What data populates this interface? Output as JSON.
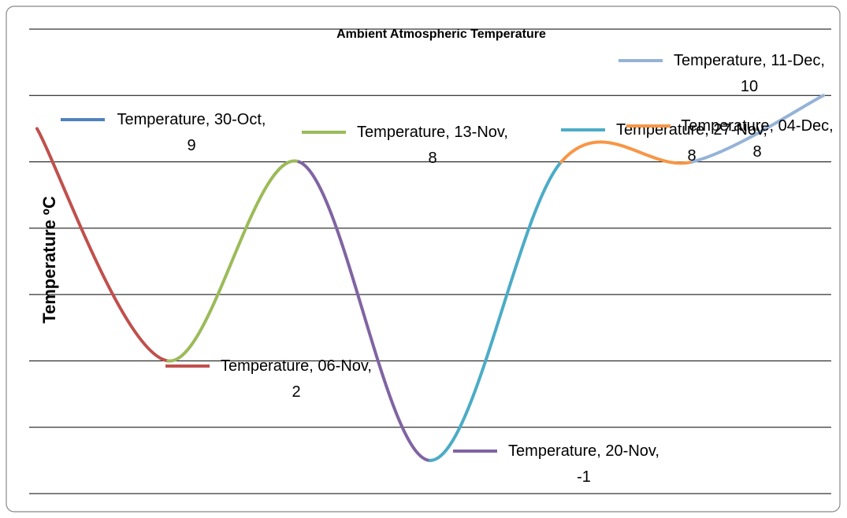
{
  "chart_data": {
    "type": "line",
    "title": "Ambient Atmospheric Temperature",
    "y_label": "Temperature ºC",
    "ylim": [
      -2,
      12
    ],
    "yticks": [
      -2,
      0,
      2,
      4,
      6,
      8,
      10,
      12
    ],
    "grid": true,
    "smooth": true,
    "series": [
      {
        "name": "Temperature",
        "values": [
          9,
          2,
          8,
          -1,
          8,
          8,
          10
        ],
        "value_labels": [
          "Temperature, 30-Oct, 9",
          "Temperature, 06-Nov, 2",
          "Temperature, 13-Nov, 8",
          "Temperature, 20-Nov, -1",
          "Temperature, 27-Nov, 8",
          "Temperature, 04-Dec, 8",
          "Temperature, 11-Dec, 10"
        ],
        "colors": [
          "#4f81bd",
          "#c0504d",
          "#9bbb59",
          "#8064a2",
          "#4bacc6",
          "#f79646",
          "#95b3d7"
        ]
      }
    ]
  }
}
